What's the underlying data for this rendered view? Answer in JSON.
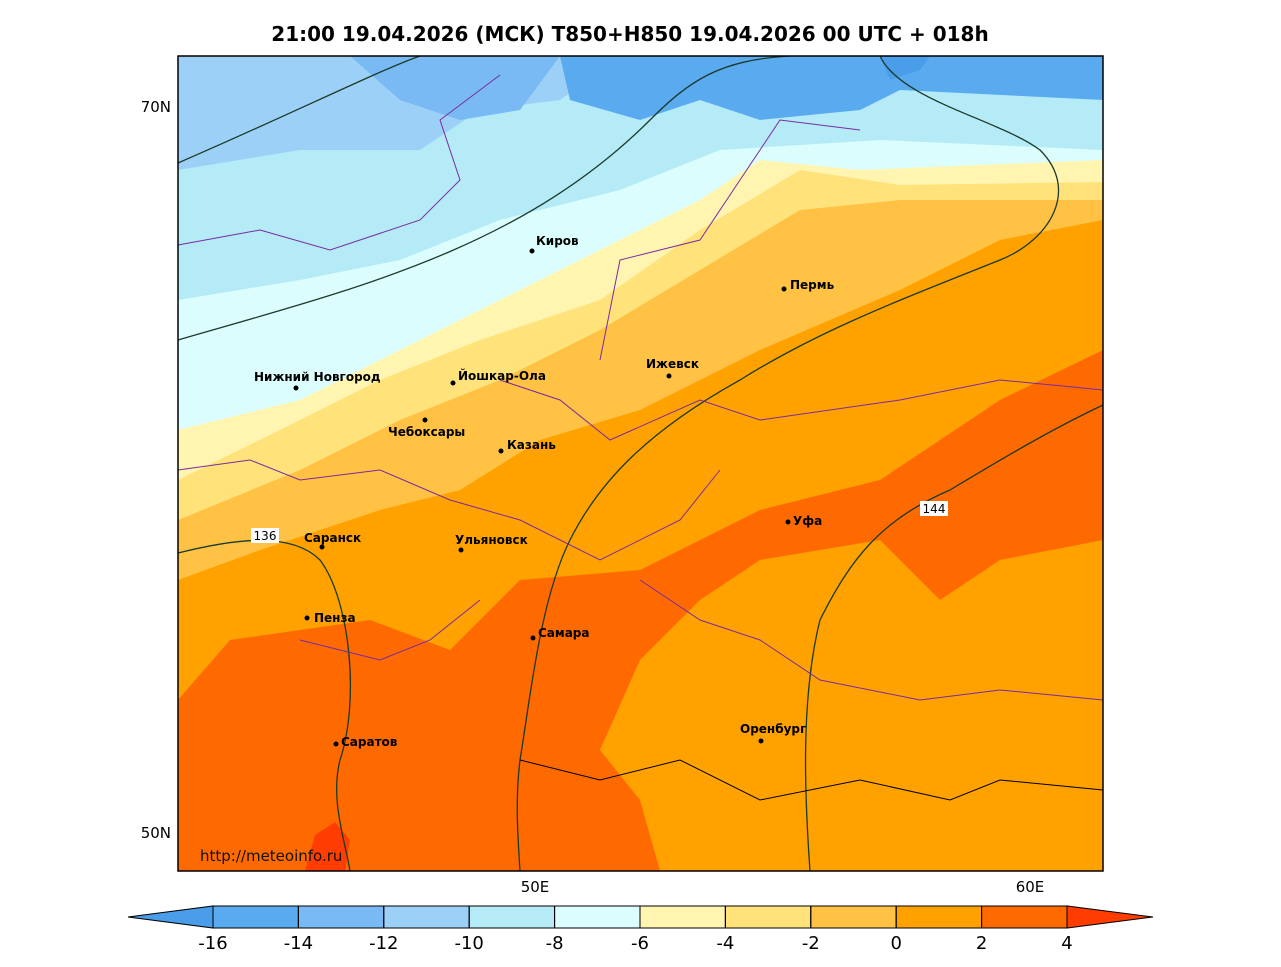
{
  "title": "21:00 19.04.2026 (МСК) T850+H850 19.04.2026 00 UTC + 018h",
  "lat_labels": [
    "70N",
    "50N"
  ],
  "lon_labels": [
    "50E",
    "60E"
  ],
  "cities": [
    "Киров",
    "Пермь",
    "Нижний Новгород",
    "Йошкар-Ола",
    "Ижевск",
    "Чебоксары",
    "Казань",
    "Саранск",
    "Ульяновск",
    "Уфа",
    "Пенза",
    "Самара",
    "Саратов",
    "Оренбург"
  ],
  "contour_labels": [
    136,
    144
  ],
  "source": "http://meteoinfo.ru",
  "colorbar": {
    "ticks": [
      -16,
      -14,
      -12,
      -10,
      -8,
      -6,
      -4,
      -2,
      0,
      2,
      4
    ],
    "colors": [
      "#4a9de8",
      "#5aaaf0",
      "#79baf4",
      "#9dd0f7",
      "#b4ebf7",
      "#dcfdfd",
      "#fff5b0",
      "#ffe37a",
      "#ffc245",
      "#ffa200",
      "#ff6a00",
      "#ff3d00"
    ]
  }
}
